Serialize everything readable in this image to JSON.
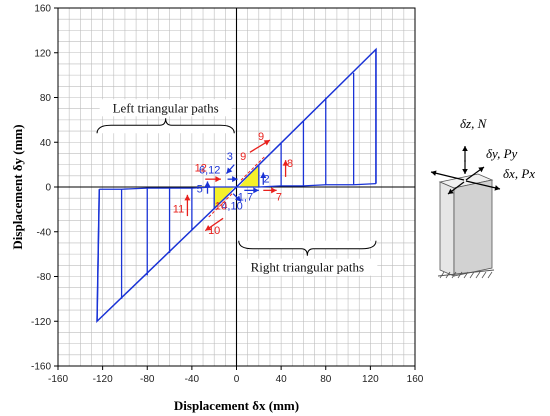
{
  "chart_data": {
    "type": "line",
    "xlabel": "Displacement δx (mm)",
    "ylabel": "Displacement δy (mm)",
    "xlim": [
      -160,
      160
    ],
    "ylim": [
      -160,
      160
    ],
    "xticks": [
      -160,
      -120,
      -80,
      -40,
      0,
      40,
      80,
      120,
      160
    ],
    "yticks": [
      -160,
      -120,
      -80,
      -40,
      0,
      40,
      80,
      120,
      160
    ],
    "xtick_labels": [
      "-160",
      "-120",
      "-80",
      "-40",
      "0",
      "40",
      "80",
      "120",
      "160"
    ],
    "ytick_labels": [
      "-160",
      "-120",
      "-80",
      "-40",
      "0",
      "40",
      "80",
      "120",
      "160"
    ],
    "grid": true,
    "colors": {
      "path": "#1a33d6",
      "red": "#e8201c",
      "blue": "#1a33d6",
      "highlight": "#f4f02a"
    },
    "paths": {
      "envelope_right": [
        [
          0,
          0
        ],
        [
          125,
          123
        ],
        [
          125,
          3
        ]
      ],
      "envelope_left": [
        [
          0,
          0
        ],
        [
          -125,
          -120
        ],
        [
          -123,
          -2
        ]
      ],
      "right_triangles": [
        {
          "peak": [
            20,
            20
          ],
          "base": [
            20,
            0
          ]
        },
        {
          "peak": [
            40,
            39
          ],
          "base": [
            40,
            1
          ]
        },
        {
          "peak": [
            60,
            59
          ],
          "base": [
            60,
            1
          ]
        },
        {
          "peak": [
            80,
            80
          ],
          "base": [
            80,
            2
          ]
        },
        {
          "peak": [
            105,
            102
          ],
          "base": [
            105,
            2
          ]
        },
        {
          "peak": [
            125,
            123
          ],
          "base": [
            125,
            3
          ]
        }
      ],
      "left_triangles": [
        {
          "peak": [
            -20,
            -20
          ],
          "base": [
            -20,
            0
          ]
        },
        {
          "peak": [
            -40,
            -39
          ],
          "base": [
            -40,
            -1
          ]
        },
        {
          "peak": [
            -60,
            -59
          ],
          "base": [
            -60,
            -1
          ]
        },
        {
          "peak": [
            -80,
            -79
          ],
          "base": [
            -80,
            -1
          ]
        },
        {
          "peak": [
            -103,
            -100
          ],
          "base": [
            -103,
            -2
          ]
        },
        {
          "peak": [
            -125,
            -120
          ],
          "base": [
            -123,
            -2
          ]
        }
      ],
      "highlight_right": [
        [
          2,
          0
        ],
        [
          20,
          0
        ],
        [
          20,
          20
        ]
      ],
      "highlight_left": [
        [
          -2,
          0
        ],
        [
          -20,
          0
        ],
        [
          -20,
          -20
        ]
      ]
    },
    "annotations": {
      "left_triangular_paths": "Left triangular paths",
      "right_triangular_paths": "Right triangular paths"
    },
    "step_labels": [
      {
        "text": "1,7",
        "color": "blue",
        "x": 8,
        "y": -12
      },
      {
        "text": "2",
        "color": "blue",
        "x": 27,
        "y": 4
      },
      {
        "text": "3",
        "color": "blue",
        "x": -6,
        "y": 24
      },
      {
        "text": "4,10",
        "color": "blue",
        "x": -4,
        "y": -20
      },
      {
        "text": "5",
        "color": "blue",
        "x": -33,
        "y": -5
      },
      {
        "text": "6,12",
        "color": "blue",
        "x": -24,
        "y": 12
      },
      {
        "text": "7",
        "color": "red",
        "x": 38,
        "y": -12
      },
      {
        "text": "8",
        "color": "red",
        "x": 48,
        "y": 18
      },
      {
        "text": "9",
        "color": "red",
        "x": 6,
        "y": 24
      },
      {
        "text": "9",
        "color": "red",
        "x": 22,
        "y": 42
      },
      {
        "text": "10",
        "color": "red",
        "x": -14,
        "y": -20
      },
      {
        "text": "10",
        "color": "red",
        "x": -20,
        "y": -42
      },
      {
        "text": "11",
        "color": "red",
        "x": -52,
        "y": -23
      },
      {
        "text": "12",
        "color": "red",
        "x": -32,
        "y": 14
      }
    ]
  },
  "inset": {
    "dz_N": "δz, N",
    "dy_Py": "δy, Py",
    "dx_Px": "δx, Px"
  }
}
